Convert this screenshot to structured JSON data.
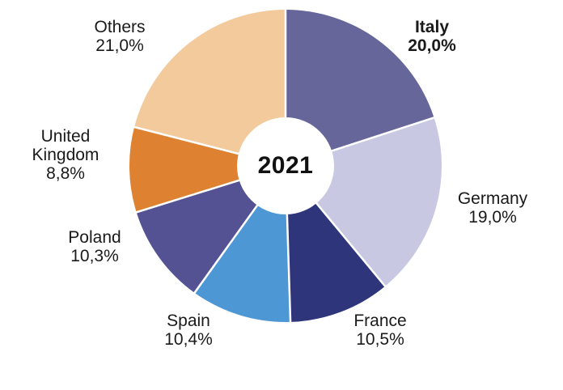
{
  "chart_data": {
    "type": "pie",
    "subtype": "donut",
    "title": "2021",
    "center_label": "2021",
    "categories": [
      "Italy",
      "Germany",
      "France",
      "Spain",
      "Poland",
      "United Kingdom",
      "Others"
    ],
    "values": [
      20.0,
      19.0,
      10.5,
      10.4,
      10.3,
      8.8,
      21.0
    ],
    "labels_display": [
      "20,0%",
      "19,0%",
      "10,5%",
      "10,4%",
      "10,3%",
      "8,8%",
      "21,0%"
    ],
    "colors": [
      "#67669B",
      "#C9C8E2",
      "#2F357B",
      "#4E97D5",
      "#555294",
      "#DE8130",
      "#F2CA9B"
    ],
    "slice_separator_color": "#FFFFFF",
    "label_color": "#1A1A1A",
    "start_angle_deg": 0,
    "direction": "clockwise",
    "donut_hole_ratio": 0.31,
    "legend_position": "none",
    "grid": false,
    "emphasized_category": "Italy"
  }
}
